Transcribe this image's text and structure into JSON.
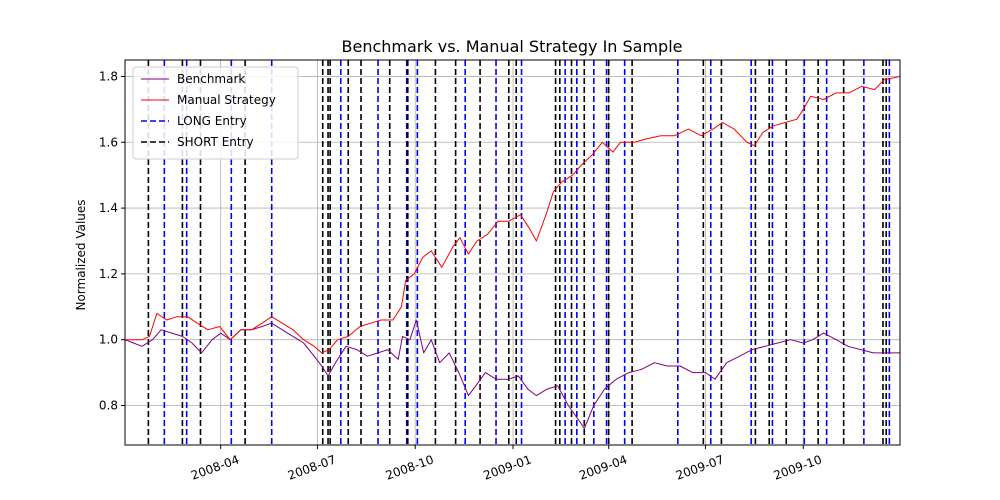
{
  "chart_data": {
    "type": "line",
    "title": "Benchmark vs. Manual Strategy In Sample",
    "xlabel": "",
    "ylabel": "Normalized Values",
    "xlim": [
      "2008-01-02",
      "2009-12-31"
    ],
    "ylim": [
      0.68,
      1.85
    ],
    "grid": true,
    "legend_position": "top-left",
    "x_ticks": [
      {
        "date": "2008-04-01",
        "label": "2008-04"
      },
      {
        "date": "2008-07-01",
        "label": "2008-07"
      },
      {
        "date": "2008-10-01",
        "label": "2008-10"
      },
      {
        "date": "2009-01-01",
        "label": "2009-01"
      },
      {
        "date": "2009-04-01",
        "label": "2009-04"
      },
      {
        "date": "2009-07-01",
        "label": "2009-07"
      },
      {
        "date": "2009-10-01",
        "label": "2009-10"
      }
    ],
    "y_ticks": [
      {
        "value": 0.8,
        "label": "0.8"
      },
      {
        "value": 1.0,
        "label": "1.0"
      },
      {
        "value": 1.2,
        "label": "1.2"
      },
      {
        "value": 1.4,
        "label": "1.4"
      },
      {
        "value": 1.6,
        "label": "1.6"
      },
      {
        "value": 1.8,
        "label": "1.8"
      }
    ],
    "series": [
      {
        "name": "Benchmark",
        "color": "#800080",
        "points": [
          [
            "2008-01-02",
            1.0
          ],
          [
            "2008-01-10",
            0.99
          ],
          [
            "2008-01-18",
            0.98
          ],
          [
            "2008-01-28",
            1.0
          ],
          [
            "2008-02-05",
            1.03
          ],
          [
            "2008-02-15",
            1.02
          ],
          [
            "2008-02-25",
            1.01
          ],
          [
            "2008-03-05",
            0.99
          ],
          [
            "2008-03-14",
            0.96
          ],
          [
            "2008-03-24",
            1.0
          ],
          [
            "2008-04-01",
            1.02
          ],
          [
            "2008-04-10",
            1.0
          ],
          [
            "2008-04-20",
            1.03
          ],
          [
            "2008-04-30",
            1.03
          ],
          [
            "2008-05-10",
            1.04
          ],
          [
            "2008-05-19",
            1.05
          ],
          [
            "2008-05-29",
            1.03
          ],
          [
            "2008-06-08",
            1.01
          ],
          [
            "2008-06-18",
            0.99
          ],
          [
            "2008-06-28",
            0.95
          ],
          [
            "2008-07-05",
            0.92
          ],
          [
            "2008-07-11",
            0.89
          ],
          [
            "2008-07-18",
            0.93
          ],
          [
            "2008-07-28",
            0.98
          ],
          [
            "2008-08-07",
            0.97
          ],
          [
            "2008-08-17",
            0.95
          ],
          [
            "2008-08-27",
            0.96
          ],
          [
            "2008-09-05",
            0.97
          ],
          [
            "2008-09-15",
            0.94
          ],
          [
            "2008-09-19",
            1.01
          ],
          [
            "2008-09-26",
            1.0
          ],
          [
            "2008-10-02",
            1.06
          ],
          [
            "2008-10-09",
            0.96
          ],
          [
            "2008-10-16",
            1.0
          ],
          [
            "2008-10-24",
            0.93
          ],
          [
            "2008-11-02",
            0.96
          ],
          [
            "2008-11-11",
            0.9
          ],
          [
            "2008-11-20",
            0.83
          ],
          [
            "2008-11-27",
            0.86
          ],
          [
            "2008-12-06",
            0.9
          ],
          [
            "2008-12-16",
            0.88
          ],
          [
            "2008-12-28",
            0.88
          ],
          [
            "2009-01-06",
            0.89
          ],
          [
            "2009-01-15",
            0.85
          ],
          [
            "2009-01-23",
            0.83
          ],
          [
            "2009-02-02",
            0.85
          ],
          [
            "2009-02-12",
            0.86
          ],
          [
            "2009-02-22",
            0.8
          ],
          [
            "2009-03-05",
            0.75
          ],
          [
            "2009-03-09",
            0.73
          ],
          [
            "2009-03-18",
            0.8
          ],
          [
            "2009-03-28",
            0.85
          ],
          [
            "2009-04-08",
            0.88
          ],
          [
            "2009-04-20",
            0.9
          ],
          [
            "2009-05-02",
            0.91
          ],
          [
            "2009-05-14",
            0.93
          ],
          [
            "2009-05-26",
            0.92
          ],
          [
            "2009-06-07",
            0.92
          ],
          [
            "2009-06-19",
            0.9
          ],
          [
            "2009-07-01",
            0.9
          ],
          [
            "2009-07-10",
            0.88
          ],
          [
            "2009-07-21",
            0.93
          ],
          [
            "2009-08-02",
            0.95
          ],
          [
            "2009-08-14",
            0.97
          ],
          [
            "2009-08-26",
            0.98
          ],
          [
            "2009-09-07",
            0.99
          ],
          [
            "2009-09-19",
            1.0
          ],
          [
            "2009-10-01",
            0.99
          ],
          [
            "2009-10-10",
            1.0
          ],
          [
            "2009-10-20",
            1.02
          ],
          [
            "2009-11-01",
            1.0
          ],
          [
            "2009-11-12",
            0.98
          ],
          [
            "2009-11-24",
            0.97
          ],
          [
            "2009-12-06",
            0.96
          ],
          [
            "2009-12-18",
            0.96
          ],
          [
            "2009-12-31",
            0.96
          ]
        ]
      },
      {
        "name": "Manual Strategy",
        "color": "#ff0000",
        "points": [
          [
            "2008-01-02",
            1.0
          ],
          [
            "2008-01-18",
            1.0
          ],
          [
            "2008-01-25",
            1.01
          ],
          [
            "2008-02-01",
            1.08
          ],
          [
            "2008-02-10",
            1.06
          ],
          [
            "2008-02-20",
            1.07
          ],
          [
            "2008-03-01",
            1.07
          ],
          [
            "2008-03-10",
            1.05
          ],
          [
            "2008-03-20",
            1.03
          ],
          [
            "2008-03-31",
            1.04
          ],
          [
            "2008-04-10",
            1.0
          ],
          [
            "2008-04-20",
            1.03
          ],
          [
            "2008-04-30",
            1.03
          ],
          [
            "2008-05-10",
            1.05
          ],
          [
            "2008-05-19",
            1.07
          ],
          [
            "2008-05-29",
            1.05
          ],
          [
            "2008-06-08",
            1.03
          ],
          [
            "2008-06-18",
            1.0
          ],
          [
            "2008-06-28",
            0.98
          ],
          [
            "2008-07-05",
            0.96
          ],
          [
            "2008-07-12",
            0.97
          ],
          [
            "2008-07-20",
            1.0
          ],
          [
            "2008-07-30",
            1.01
          ],
          [
            "2008-08-10",
            1.04
          ],
          [
            "2008-08-20",
            1.05
          ],
          [
            "2008-08-30",
            1.06
          ],
          [
            "2008-09-10",
            1.06
          ],
          [
            "2008-09-18",
            1.1
          ],
          [
            "2008-09-22",
            1.18
          ],
          [
            "2008-09-30",
            1.2
          ],
          [
            "2008-10-08",
            1.25
          ],
          [
            "2008-10-16",
            1.27
          ],
          [
            "2008-10-26",
            1.22
          ],
          [
            "2008-11-05",
            1.28
          ],
          [
            "2008-11-12",
            1.31
          ],
          [
            "2008-11-20",
            1.26
          ],
          [
            "2008-11-28",
            1.3
          ],
          [
            "2008-12-08",
            1.32
          ],
          [
            "2008-12-18",
            1.36
          ],
          [
            "2008-12-28",
            1.36
          ],
          [
            "2009-01-08",
            1.38
          ],
          [
            "2009-01-16",
            1.34
          ],
          [
            "2009-01-23",
            1.3
          ],
          [
            "2009-02-01",
            1.38
          ],
          [
            "2009-02-08",
            1.45
          ],
          [
            "2009-02-16",
            1.48
          ],
          [
            "2009-02-26",
            1.5
          ],
          [
            "2009-03-06",
            1.53
          ],
          [
            "2009-03-16",
            1.56
          ],
          [
            "2009-03-26",
            1.6
          ],
          [
            "2009-04-05",
            1.57
          ],
          [
            "2009-04-12",
            1.6
          ],
          [
            "2009-04-25",
            1.6
          ],
          [
            "2009-05-06",
            1.61
          ],
          [
            "2009-05-20",
            1.62
          ],
          [
            "2009-06-02",
            1.62
          ],
          [
            "2009-06-15",
            1.64
          ],
          [
            "2009-06-27",
            1.62
          ],
          [
            "2009-07-08",
            1.64
          ],
          [
            "2009-07-17",
            1.66
          ],
          [
            "2009-07-28",
            1.64
          ],
          [
            "2009-08-09",
            1.6
          ],
          [
            "2009-08-16",
            1.59
          ],
          [
            "2009-08-24",
            1.63
          ],
          [
            "2009-09-03",
            1.65
          ],
          [
            "2009-09-14",
            1.66
          ],
          [
            "2009-09-25",
            1.67
          ],
          [
            "2009-10-01",
            1.7
          ],
          [
            "2009-10-08",
            1.74
          ],
          [
            "2009-10-20",
            1.73
          ],
          [
            "2009-11-01",
            1.75
          ],
          [
            "2009-11-13",
            1.75
          ],
          [
            "2009-11-25",
            1.77
          ],
          [
            "2009-12-07",
            1.76
          ],
          [
            "2009-12-16",
            1.79
          ],
          [
            "2009-12-31",
            1.8
          ]
        ]
      }
    ],
    "vertical_lines": [
      {
        "name": "LONG Entry",
        "color": "#0000ff",
        "style": "dashed",
        "dates": [
          "2008-02-08",
          "2008-02-29",
          "2008-04-11",
          "2008-05-19",
          "2008-07-23",
          "2008-08-27",
          "2008-09-23",
          "2008-10-03",
          "2008-11-17",
          "2008-12-16",
          "2009-01-09",
          "2009-02-19",
          "2009-03-02",
          "2009-03-18",
          "2009-03-30",
          "2009-04-16",
          "2009-06-05",
          "2009-07-06",
          "2009-08-13",
          "2009-09-02",
          "2009-10-02",
          "2009-10-23",
          "2009-11-27",
          "2009-12-21"
        ],
        "legend_label": "LONG Entry"
      },
      {
        "name": "SHORT Entry",
        "color": "#000000",
        "style": "dashed",
        "dates": [
          "2008-01-24",
          "2008-02-25",
          "2008-03-13",
          "2008-04-24",
          "2008-07-06",
          "2008-07-11",
          "2008-07-13",
          "2008-07-30",
          "2008-08-11",
          "2008-09-07",
          "2008-09-24",
          "2008-10-20",
          "2008-11-08",
          "2008-12-01",
          "2008-12-28",
          "2009-01-04",
          "2009-02-10",
          "2009-02-14",
          "2009-02-25",
          "2009-03-09",
          "2009-04-01",
          "2009-04-23",
          "2009-06-29",
          "2009-07-16",
          "2009-08-17",
          "2009-08-30",
          "2009-09-15",
          "2009-10-15",
          "2009-11-08",
          "2009-12-15",
          "2009-12-18"
        ],
        "legend_label": "SHORT Entry"
      }
    ]
  }
}
